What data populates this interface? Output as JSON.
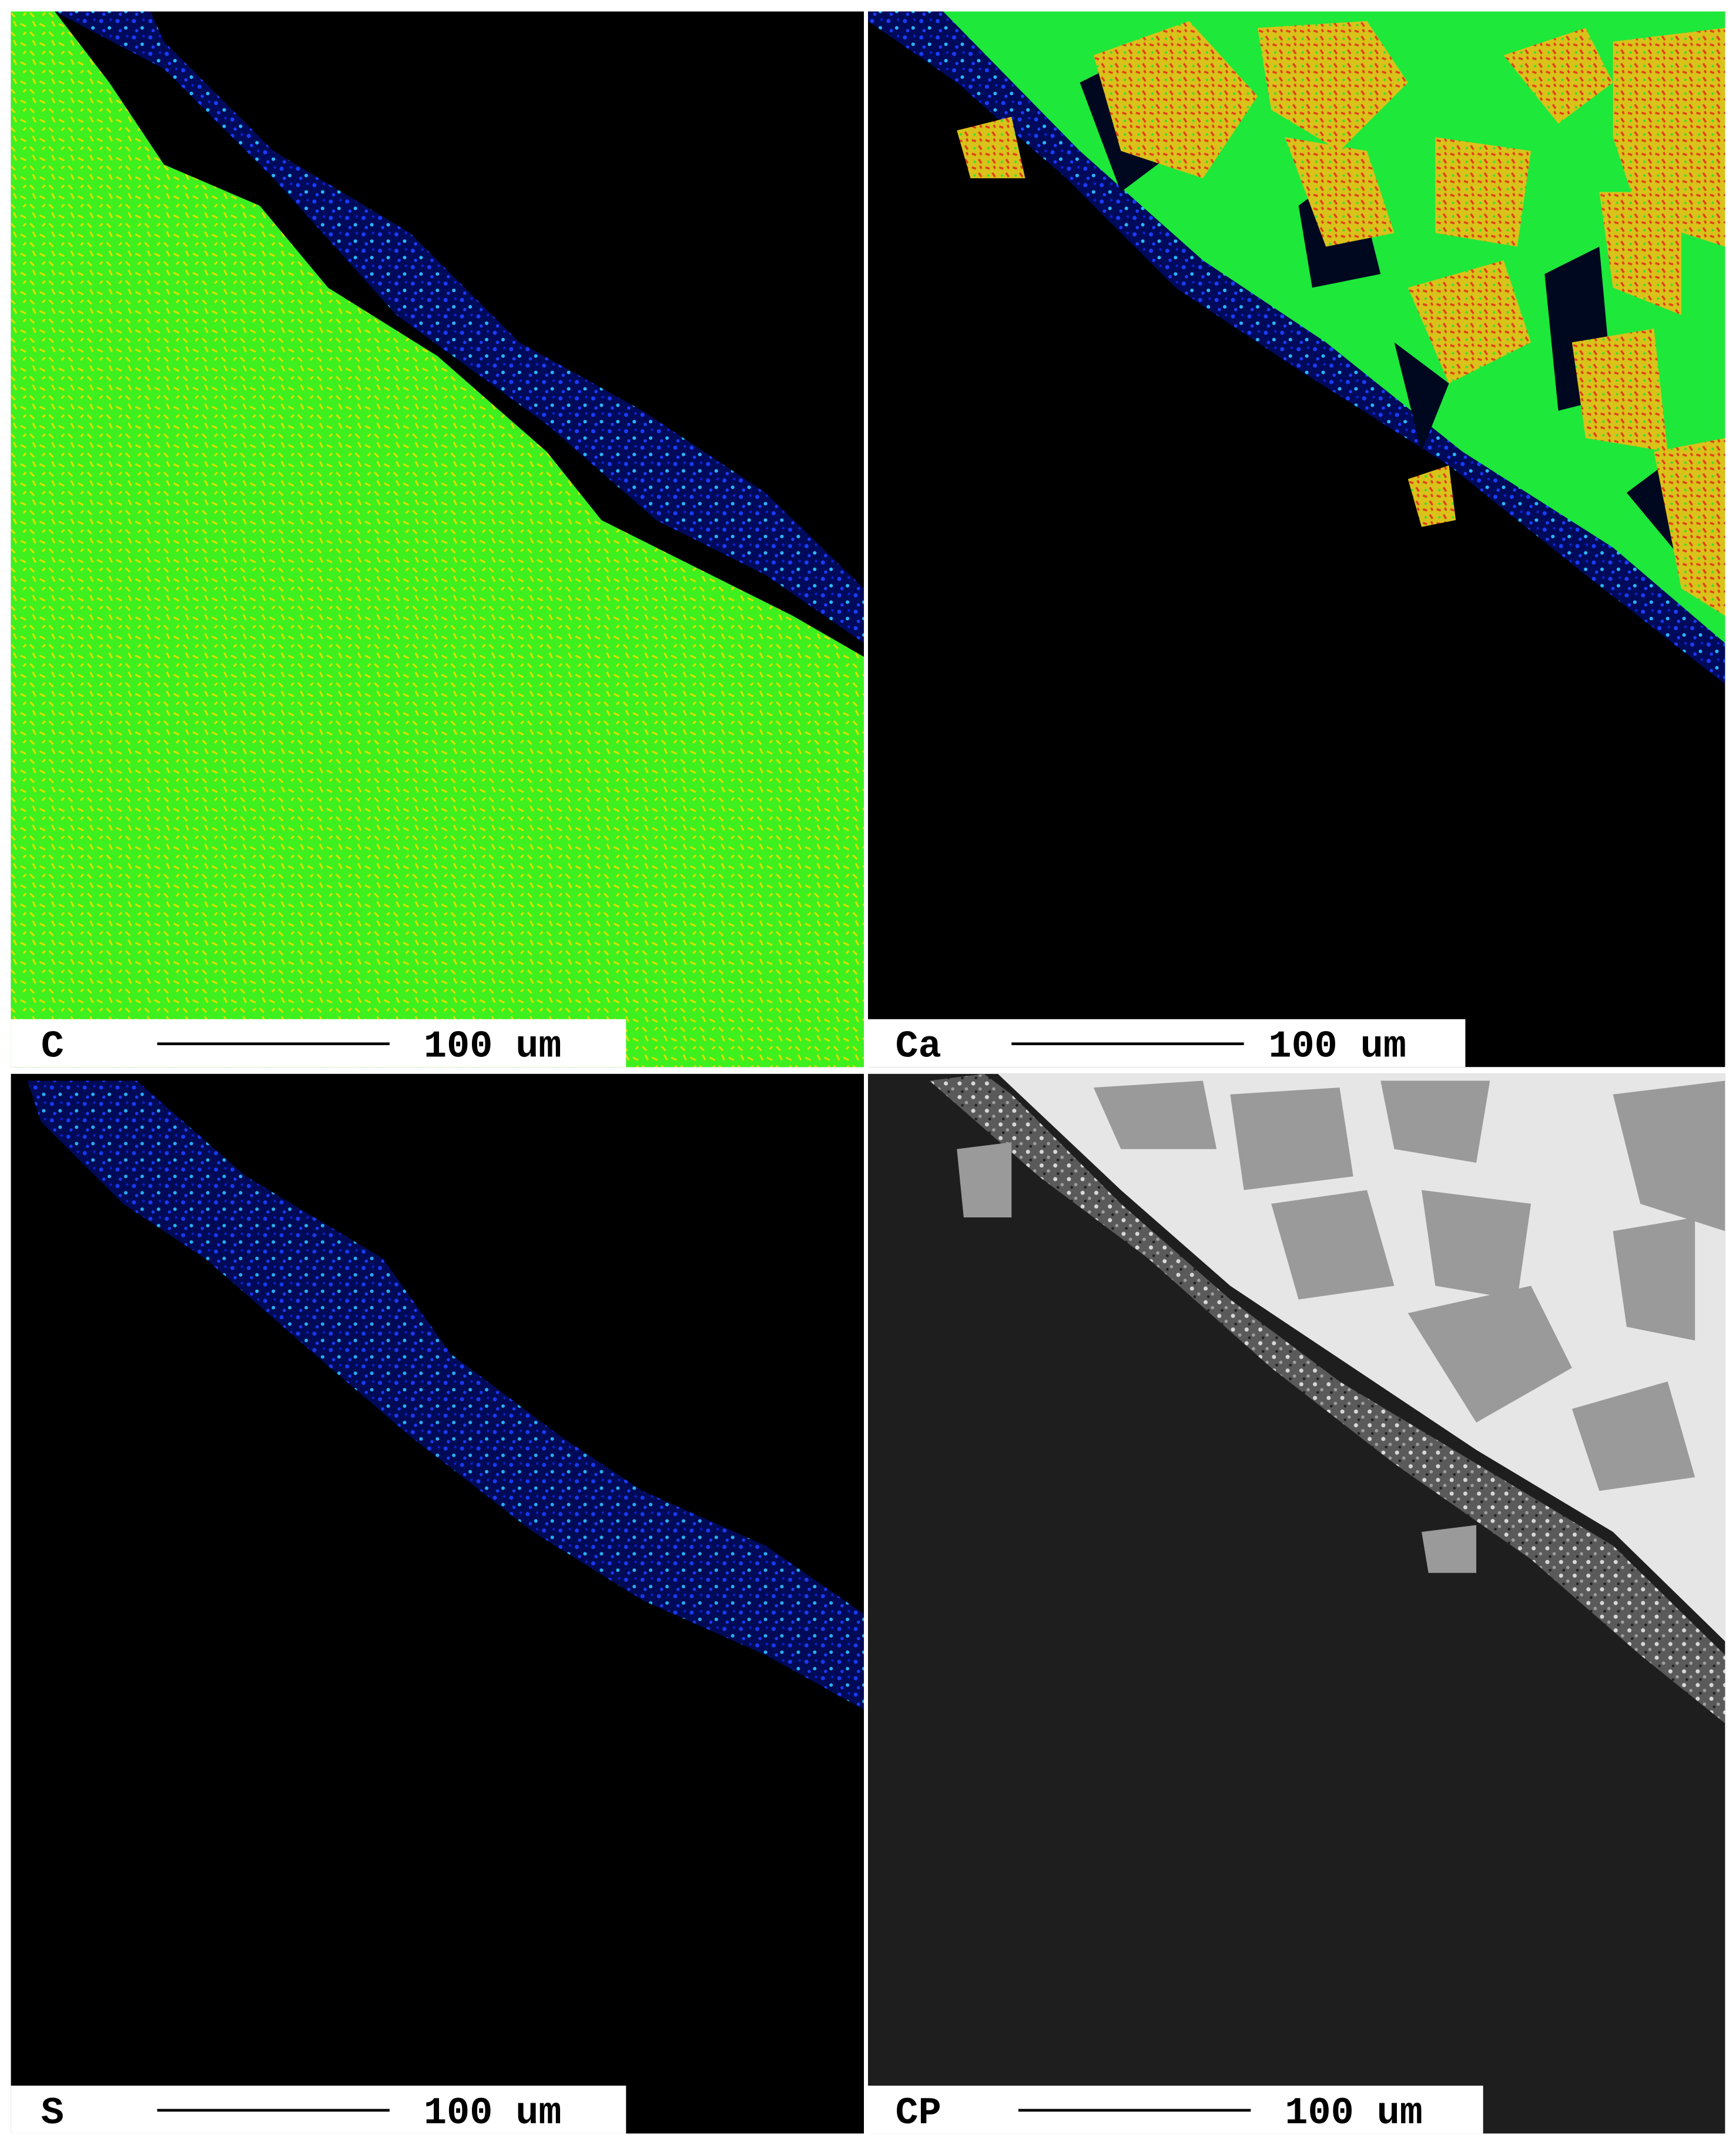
{
  "panels": [
    {
      "label": "C",
      "scale_bar": "100 um"
    },
    {
      "label": "Ca",
      "scale_bar": "100 um"
    },
    {
      "label": "S",
      "scale_bar": "100 um"
    },
    {
      "label": "CP",
      "scale_bar": "100 um"
    }
  ]
}
